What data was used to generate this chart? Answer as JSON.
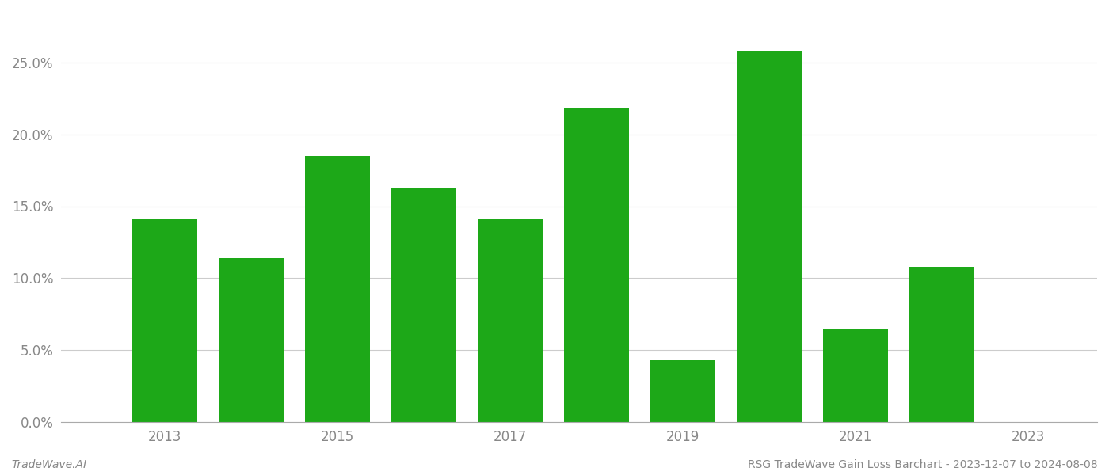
{
  "years": [
    2013,
    2014,
    2015,
    2016,
    2017,
    2018,
    2019,
    2020,
    2021,
    2022
  ],
  "values": [
    0.141,
    0.114,
    0.185,
    0.163,
    0.141,
    0.218,
    0.043,
    0.258,
    0.065,
    0.108
  ],
  "bar_color": "#1da818",
  "background_color": "#ffffff",
  "grid_color": "#cccccc",
  "footer_left": "TradeWave.AI",
  "footer_right": "RSG TradeWave Gain Loss Barchart - 2023-12-07 to 2024-08-08",
  "ylim_min": 0.0,
  "ylim_max": 0.285,
  "yticks": [
    0.0,
    0.05,
    0.1,
    0.15,
    0.2,
    0.25
  ],
  "xticks": [
    2013,
    2015,
    2017,
    2019,
    2021,
    2023
  ],
  "bar_width": 0.75,
  "xlim_min": 2011.8,
  "xlim_max": 2023.8,
  "spine_color": "#aaaaaa",
  "tick_label_color": "#888888",
  "footer_color": "#888888",
  "tick_fontsize": 12,
  "footer_fontsize": 10
}
